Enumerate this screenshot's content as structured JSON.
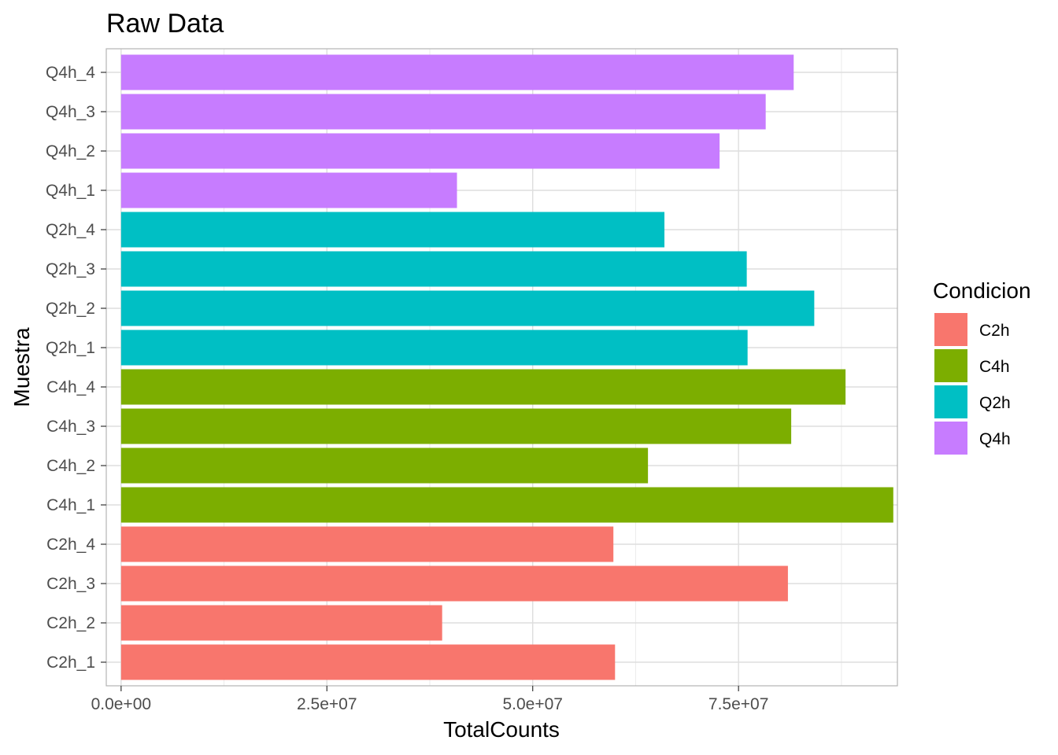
{
  "chart_data": {
    "type": "bar",
    "orientation": "horizontal",
    "title": "Raw Data",
    "xlabel": "TotalCounts",
    "ylabel": "Muestra",
    "xlim": [
      -1800000,
      94300000
    ],
    "x_ticks": [
      0,
      25000000,
      50000000,
      75000000
    ],
    "x_tick_labels": [
      "0.0e+00",
      "2.5e+07",
      "5.0e+07",
      "7.5e+07"
    ],
    "x_minor_ticks": [
      12500000,
      37500000,
      62500000,
      87500000
    ],
    "grid": true,
    "categories": [
      "C2h_1",
      "C2h_2",
      "C2h_3",
      "C2h_4",
      "C4h_1",
      "C4h_2",
      "C4h_3",
      "C4h_4",
      "Q2h_1",
      "Q2h_2",
      "Q2h_3",
      "Q2h_4",
      "Q4h_1",
      "Q4h_2",
      "Q4h_3",
      "Q4h_4"
    ],
    "groups": [
      "C2h",
      "C2h",
      "C2h",
      "C2h",
      "C4h",
      "C4h",
      "C4h",
      "C4h",
      "Q2h",
      "Q2h",
      "Q2h",
      "Q2h",
      "Q4h",
      "Q4h",
      "Q4h",
      "Q4h"
    ],
    "values": [
      60000000,
      39000000,
      81000000,
      59800000,
      93800000,
      64000000,
      81400000,
      88000000,
      76100000,
      84200000,
      76000000,
      66000000,
      40800000,
      72700000,
      78300000,
      81700000
    ],
    "legend": {
      "title": "Condicion",
      "position": "right",
      "entries": [
        {
          "label": "C2h",
          "color": "#F8766D"
        },
        {
          "label": "C4h",
          "color": "#7CAE00"
        },
        {
          "label": "Q2h",
          "color": "#00BFC4"
        },
        {
          "label": "Q4h",
          "color": "#C77CFF"
        }
      ]
    }
  }
}
